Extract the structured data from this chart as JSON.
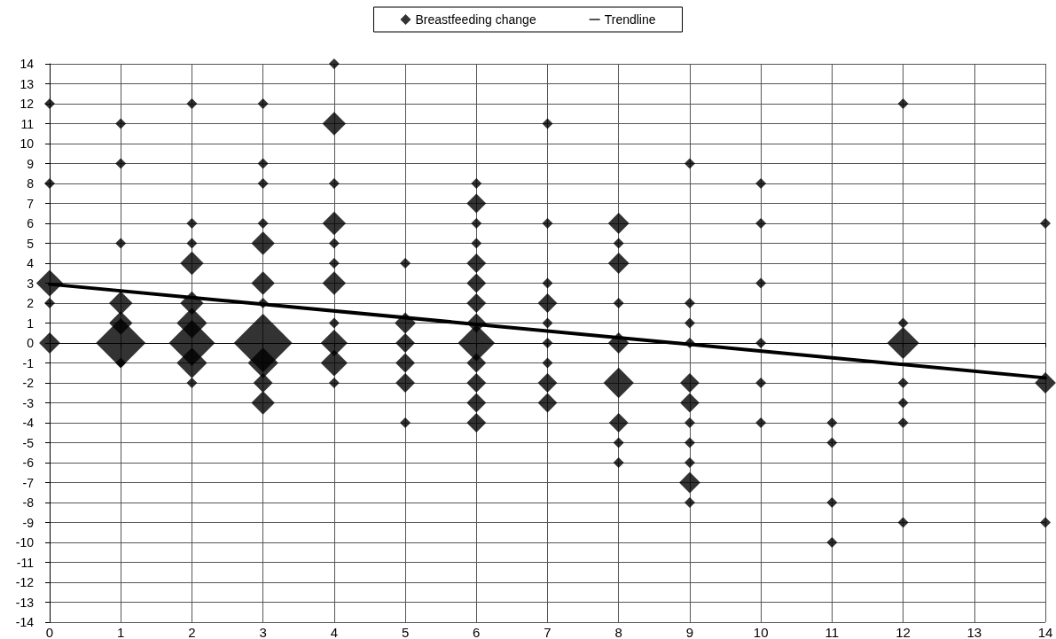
{
  "chart_data": {
    "type": "bubble",
    "grid": true,
    "legend": "top",
    "xlim": [
      0,
      14
    ],
    "xticks": [
      0,
      1,
      2,
      3,
      4,
      5,
      6,
      7,
      8,
      9,
      10,
      11,
      12,
      13,
      14
    ],
    "ylim": [
      -14,
      14
    ],
    "yticks": [
      -14,
      -13,
      -12,
      -11,
      -10,
      -9,
      -8,
      -7,
      -6,
      -5,
      -4,
      -3,
      -2,
      -1,
      0,
      1,
      2,
      3,
      4,
      5,
      6,
      7,
      8,
      9,
      10,
      11,
      12,
      13,
      14
    ],
    "series": [
      {
        "name": "Breastfeeding change",
        "marker": "diamond",
        "color": "#000000",
        "x": [
          0,
          0,
          0,
          0,
          0,
          1,
          1,
          1,
          1,
          1,
          1,
          1,
          2,
          2,
          2,
          2,
          2,
          2,
          2,
          2,
          2,
          3,
          3,
          3,
          3,
          3,
          3,
          3,
          3,
          3,
          3,
          3,
          4,
          4,
          4,
          4,
          4,
          4,
          4,
          4,
          4,
          4,
          4,
          5,
          5,
          5,
          5,
          5,
          5,
          6,
          6,
          6,
          6,
          6,
          6,
          6,
          6,
          6,
          6,
          6,
          6,
          6,
          7,
          7,
          7,
          7,
          7,
          7,
          7,
          7,
          7,
          8,
          8,
          8,
          8,
          8,
          8,
          8,
          8,
          8,
          9,
          9,
          9,
          9,
          9,
          9,
          9,
          9,
          9,
          9,
          9,
          10,
          10,
          10,
          10,
          10,
          10,
          11,
          11,
          11,
          11,
          12,
          12,
          12,
          12,
          12,
          12,
          12,
          14,
          14,
          14
        ],
        "values": [
          12,
          8,
          3,
          2,
          0,
          11,
          9,
          5,
          2,
          1,
          0,
          -1,
          12,
          6,
          5,
          4,
          2,
          1,
          0,
          -1,
          -2,
          12,
          9,
          8,
          6,
          5,
          3,
          2,
          0,
          -1,
          -2,
          -3,
          14,
          11,
          8,
          6,
          5,
          4,
          3,
          1,
          0,
          -1,
          -2,
          4,
          1,
          0,
          -1,
          -2,
          -4,
          8,
          7,
          6,
          5,
          4,
          3,
          2,
          1,
          0,
          -1,
          -2,
          -3,
          -4,
          11,
          6,
          3,
          2,
          1,
          0,
          -1,
          -2,
          -3,
          6,
          5,
          4,
          2,
          0,
          -2,
          -4,
          -5,
          -6,
          9,
          2,
          1,
          0,
          -2,
          -3,
          -4,
          -5,
          -6,
          -7,
          -8,
          8,
          6,
          3,
          0,
          -2,
          -4,
          -4,
          -5,
          -8,
          -10,
          12,
          1,
          0,
          -2,
          -3,
          -4,
          -9,
          6,
          -2,
          -9
        ],
        "sizes": [
          0.033,
          0.033,
          0.21,
          0.033,
          0.13,
          0.033,
          0.033,
          0.033,
          0.16,
          0.16,
          0.72,
          0.033,
          0.033,
          0.033,
          0.033,
          0.16,
          0.16,
          0.27,
          0.62,
          0.27,
          0.033,
          0.033,
          0.033,
          0.033,
          0.033,
          0.16,
          0.16,
          0.033,
          1,
          0.27,
          0.11,
          0.16,
          0.033,
          0.16,
          0.033,
          0.16,
          0.033,
          0.033,
          0.16,
          0.033,
          0.21,
          0.21,
          0.033,
          0.033,
          0.13,
          0.11,
          0.11,
          0.11,
          0.033,
          0.033,
          0.11,
          0.033,
          0.033,
          0.11,
          0.11,
          0.11,
          0.11,
          0.4,
          0.11,
          0.11,
          0.11,
          0.11,
          0.033,
          0.033,
          0.033,
          0.11,
          0.033,
          0.033,
          0.033,
          0.11,
          0.11,
          0.13,
          0.033,
          0.13,
          0.033,
          0.13,
          0.27,
          0.11,
          0.033,
          0.033,
          0.033,
          0.033,
          0.033,
          0.033,
          0.11,
          0.11,
          0.033,
          0.033,
          0.033,
          0.13,
          0.033,
          0.033,
          0.033,
          0.033,
          0.033,
          0.033,
          0.033,
          0.033,
          0.033,
          0.033,
          0.033,
          0.033,
          0.033,
          0.3,
          0.033,
          0.033,
          0.033,
          0.033,
          0.033,
          0.13,
          0.033
        ]
      },
      {
        "name": "Trendline",
        "type": "line",
        "marker": "none",
        "color": "#000000",
        "x": [
          0,
          14
        ],
        "values": [
          2.95,
          -1.75
        ]
      }
    ]
  }
}
